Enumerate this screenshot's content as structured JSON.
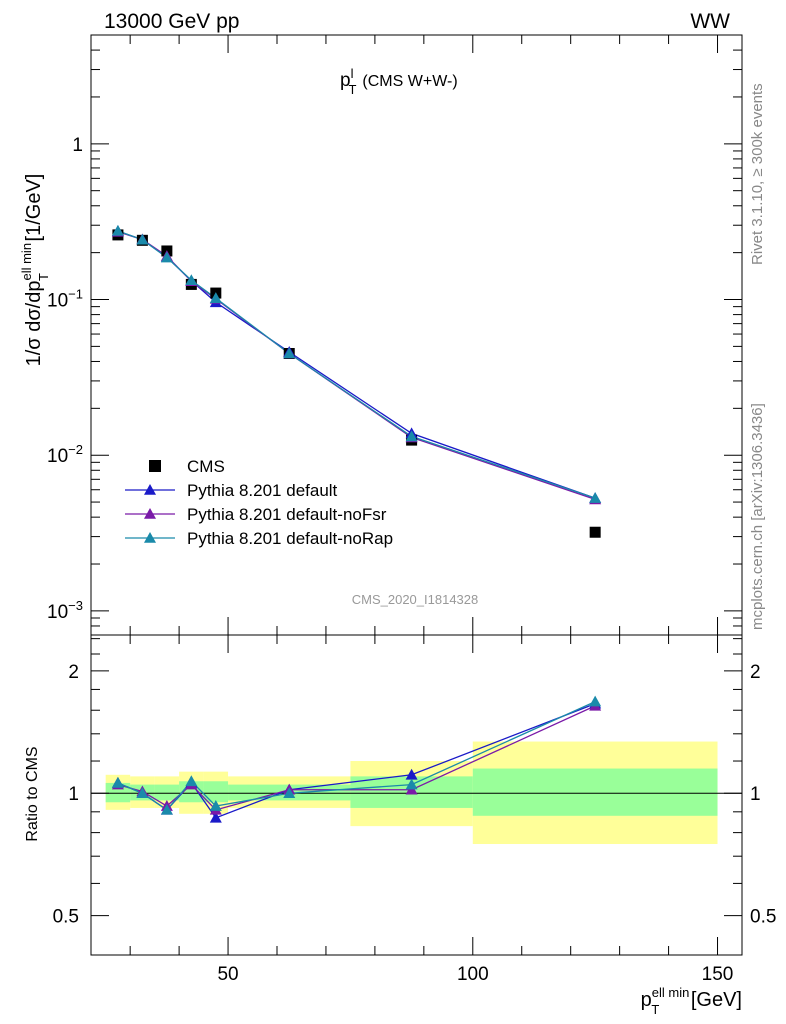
{
  "header": {
    "left": "13000 GeV pp",
    "right": "WW"
  },
  "plot_title": {
    "main": "p",
    "sup": "l",
    "sub": "T",
    "suffix": "(CMS W+W-)"
  },
  "y_label": {
    "prefix": "1/σ dσ/dp",
    "sup": "ell min",
    "sub": "T",
    "suffix": " [1/GeV]"
  },
  "x_label": {
    "main": "p",
    "sup": "ell min",
    "sub": "T",
    "suffix": " [GeV]"
  },
  "ratio_label": "Ratio to CMS",
  "side_labels": {
    "rivet": "Rivet 3.1.10, ≥ 300k events",
    "mcplots": "mcplots.cern.ch [arXiv:1306.3436]"
  },
  "watermark": "CMS_2020_I1814328",
  "colors": {
    "data": "#000000",
    "default": "#1a1ac8",
    "noFsr": "#7a1aa8",
    "noRap": "#1a8aaa",
    "band_inner": "#99ff99",
    "band_outer": "#ffff99"
  },
  "chart_data": [
    {
      "type": "scatter",
      "panel": "main",
      "x_scale": "linear",
      "y_scale": "log",
      "xlim": [
        22,
        155
      ],
      "ylim": [
        0.0007,
        5
      ],
      "y_ticks": [
        {
          "v": 0.001,
          "base": "10",
          "exp": "−3"
        },
        {
          "v": 0.01,
          "base": "10",
          "exp": "−2"
        },
        {
          "v": 0.1,
          "base": "10",
          "exp": "−1"
        },
        {
          "v": 1,
          "label": "1"
        }
      ],
      "x_bins": [
        [
          25,
          30
        ],
        [
          30,
          35
        ],
        [
          35,
          40
        ],
        [
          40,
          45
        ],
        [
          45,
          50
        ],
        [
          50,
          75
        ],
        [
          75,
          100
        ],
        [
          100,
          150
        ]
      ],
      "x": [
        27.5,
        32.5,
        37.5,
        42.5,
        47.5,
        62.5,
        87.5,
        125
      ],
      "legend_position": "middle-left",
      "series": [
        {
          "name": "CMS",
          "key": "data",
          "marker": "square",
          "values": [
            0.26,
            0.24,
            0.205,
            0.125,
            0.11,
            0.045,
            0.0125,
            0.0032
          ]
        },
        {
          "name": "Pythia 8.201 default",
          "key": "default",
          "marker": "triangle",
          "values": [
            0.275,
            0.242,
            0.187,
            0.132,
            0.096,
            0.046,
            0.0138,
            0.0053
          ]
        },
        {
          "name": "Pythia 8.201 default-noFsr",
          "key": "noFsr",
          "marker": "triangle",
          "values": [
            0.272,
            0.243,
            0.19,
            0.131,
            0.101,
            0.045,
            0.013,
            0.0052
          ]
        },
        {
          "name": "Pythia 8.201 default-noRap",
          "key": "noRap",
          "marker": "triangle",
          "values": [
            0.276,
            0.242,
            0.186,
            0.133,
            0.102,
            0.045,
            0.0132,
            0.0053
          ]
        }
      ]
    },
    {
      "type": "line",
      "panel": "ratio",
      "x_scale": "linear",
      "y_scale": "log",
      "xlim": [
        22,
        155
      ],
      "ylim": [
        0.4,
        2.45
      ],
      "y_ticks": [
        {
          "v": 0.5,
          "label": "0.5"
        },
        {
          "v": 1,
          "label": "1"
        },
        {
          "v": 2,
          "label": "2"
        }
      ],
      "x_ticks": [
        {
          "v": 50,
          "label": "50"
        },
        {
          "v": 100,
          "label": "100"
        },
        {
          "v": 150,
          "label": "150"
        }
      ],
      "x": [
        27.5,
        32.5,
        37.5,
        42.5,
        47.5,
        62.5,
        87.5,
        125
      ],
      "bands": [
        {
          "x0": 25,
          "x1": 30,
          "inner": [
            0.95,
            1.06
          ],
          "outer": [
            0.91,
            1.11
          ]
        },
        {
          "x0": 30,
          "x1": 35,
          "inner": [
            0.96,
            1.05
          ],
          "outer": [
            0.92,
            1.1
          ]
        },
        {
          "x0": 35,
          "x1": 40,
          "inner": [
            0.96,
            1.05
          ],
          "outer": [
            0.92,
            1.1
          ]
        },
        {
          "x0": 40,
          "x1": 45,
          "inner": [
            0.95,
            1.07
          ],
          "outer": [
            0.89,
            1.13
          ]
        },
        {
          "x0": 45,
          "x1": 50,
          "inner": [
            0.95,
            1.07
          ],
          "outer": [
            0.89,
            1.13
          ]
        },
        {
          "x0": 50,
          "x1": 75,
          "inner": [
            0.96,
            1.05
          ],
          "outer": [
            0.92,
            1.1
          ]
        },
        {
          "x0": 75,
          "x1": 100,
          "inner": [
            0.92,
            1.1
          ],
          "outer": [
            0.83,
            1.2
          ]
        },
        {
          "x0": 100,
          "x1": 150,
          "inner": [
            0.88,
            1.15
          ],
          "outer": [
            0.75,
            1.34
          ]
        }
      ],
      "series": [
        {
          "name": "Pythia 8.201 default",
          "key": "default",
          "values": [
            1.06,
            1.0,
            0.91,
            1.06,
            0.87,
            1.02,
            1.11,
            1.66
          ]
        },
        {
          "name": "Pythia 8.201 default-noFsr",
          "key": "noFsr",
          "values": [
            1.05,
            1.01,
            0.93,
            1.05,
            0.91,
            1.02,
            1.02,
            1.64
          ]
        },
        {
          "name": "Pythia 8.201 default-noRap",
          "key": "noRap",
          "values": [
            1.06,
            1.0,
            0.91,
            1.07,
            0.93,
            1.0,
            1.05,
            1.68
          ]
        }
      ]
    }
  ]
}
